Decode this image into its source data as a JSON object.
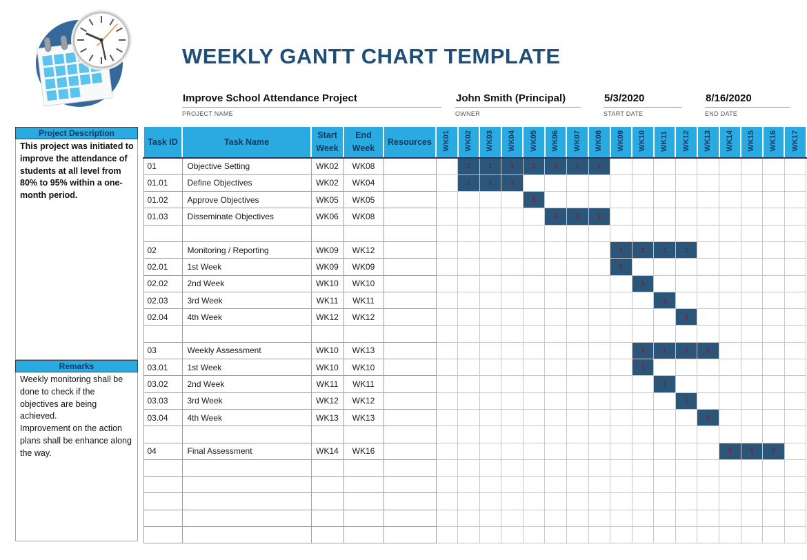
{
  "page": {
    "title": "WEEKLY GANTT CHART TEMPLATE"
  },
  "logo": {
    "description": "calendar-with-clock-logo"
  },
  "info": {
    "project_name": {
      "value": "Improve School Attendance Project",
      "label": "PROJECT NAME"
    },
    "owner": {
      "value": "John Smith (Principal)",
      "label": "OWNER"
    },
    "start_date": {
      "value": "5/3/2020",
      "label": "START DATE"
    },
    "end_date": {
      "value": "8/16/2020",
      "label": "END DATE"
    }
  },
  "sidebar": {
    "project_description": {
      "title": "Project Description",
      "body": "This project was initiated to improve the attendance of students at all level from 80% to 95% within a one-month period."
    },
    "remarks": {
      "title": "Remarks",
      "body": "Weekly monitoring shall be done to check if the objectives are being achieved.\nImprovement on the action plans shall be enhance along the way."
    }
  },
  "table": {
    "headers": {
      "task_id": "Task ID",
      "task_name": "Task Name",
      "start_week": "Start\nWeek",
      "end_week": "End\nWeek",
      "resources": "Resources"
    }
  },
  "chart_data": {
    "type": "table",
    "subtype": "gantt-weekly",
    "title": "WEEKLY GANTT CHART TEMPLATE",
    "bar_cell_value": "1",
    "week_columns": [
      "WK01",
      "WK02",
      "WK03",
      "WK04",
      "WK05",
      "WK06",
      "WK07",
      "WK08",
      "WK09",
      "WK10",
      "WK11",
      "WK12",
      "WK13",
      "WK14",
      "WK15",
      "WK16",
      "WK17"
    ],
    "rows": [
      {
        "task_id": "01",
        "task_name": "Objective Setting",
        "start_week": "WK02",
        "end_week": "WK08",
        "bar_start": 2,
        "bar_end": 8
      },
      {
        "task_id": "01.01",
        "task_name": "Define Objectives",
        "start_week": "WK02",
        "end_week": "WK04",
        "bar_start": 2,
        "bar_end": 4
      },
      {
        "task_id": "01.02",
        "task_name": "Approve Objectives",
        "start_week": "WK05",
        "end_week": "WK05",
        "bar_start": 5,
        "bar_end": 5
      },
      {
        "task_id": "01.03",
        "task_name": "Disseminate Objectives",
        "start_week": "WK06",
        "end_week": "WK08",
        "bar_start": 6,
        "bar_end": 8
      },
      {
        "task_id": "",
        "task_name": "",
        "start_week": "",
        "end_week": "",
        "bar_start": null,
        "bar_end": null
      },
      {
        "task_id": "02",
        "task_name": "Monitoring / Reporting",
        "start_week": "WK09",
        "end_week": "WK12",
        "bar_start": 9,
        "bar_end": 12
      },
      {
        "task_id": "02.01",
        "task_name": "1st Week",
        "start_week": "WK09",
        "end_week": "WK09",
        "bar_start": 9,
        "bar_end": 9
      },
      {
        "task_id": "02.02",
        "task_name": "2nd Week",
        "start_week": "WK10",
        "end_week": "WK10",
        "bar_start": 10,
        "bar_end": 10
      },
      {
        "task_id": "02.03",
        "task_name": "3rd Week",
        "start_week": "WK11",
        "end_week": "WK11",
        "bar_start": 11,
        "bar_end": 11
      },
      {
        "task_id": "02.04",
        "task_name": "4th Week",
        "start_week": "WK12",
        "end_week": "WK12",
        "bar_start": 12,
        "bar_end": 12
      },
      {
        "task_id": "",
        "task_name": "",
        "start_week": "",
        "end_week": "",
        "bar_start": null,
        "bar_end": null
      },
      {
        "task_id": "03",
        "task_name": "Weekly Assessment",
        "start_week": "WK10",
        "end_week": "WK13",
        "bar_start": 10,
        "bar_end": 13
      },
      {
        "task_id": "03.01",
        "task_name": "1st Week",
        "start_week": "WK10",
        "end_week": "WK10",
        "bar_start": 10,
        "bar_end": 10
      },
      {
        "task_id": "03.02",
        "task_name": "2nd Week",
        "start_week": "WK11",
        "end_week": "WK11",
        "bar_start": 11,
        "bar_end": 11
      },
      {
        "task_id": "03.03",
        "task_name": "3rd Week",
        "start_week": "WK12",
        "end_week": "WK12",
        "bar_start": 12,
        "bar_end": 12
      },
      {
        "task_id": "03.04",
        "task_name": "4th Week",
        "start_week": "WK13",
        "end_week": "WK13",
        "bar_start": 13,
        "bar_end": 13
      },
      {
        "task_id": "",
        "task_name": "",
        "start_week": "",
        "end_week": "",
        "bar_start": null,
        "bar_end": null
      },
      {
        "task_id": "04",
        "task_name": "Final Assessment",
        "start_week": "WK14",
        "end_week": "WK16",
        "bar_start": 14,
        "bar_end": 16
      },
      {
        "task_id": "",
        "task_name": "",
        "start_week": "",
        "end_week": "",
        "bar_start": null,
        "bar_end": null
      },
      {
        "task_id": "",
        "task_name": "",
        "start_week": "",
        "end_week": "",
        "bar_start": null,
        "bar_end": null
      },
      {
        "task_id": "",
        "task_name": "",
        "start_week": "",
        "end_week": "",
        "bar_start": null,
        "bar_end": null
      },
      {
        "task_id": "",
        "task_name": "",
        "start_week": "",
        "end_week": "",
        "bar_start": null,
        "bar_end": null
      },
      {
        "task_id": "",
        "task_name": "",
        "start_week": "",
        "end_week": "",
        "bar_start": null,
        "bar_end": null
      }
    ]
  },
  "colors": {
    "accent_cyan": "#29ABE2",
    "title_navy": "#1F4E79",
    "header_text_navy": "#17375E",
    "gantt_bar_fill": "#2B5579",
    "gantt_bar_value_text": "#7E1F3C",
    "logo_circle_blue": "#35689B",
    "logo_calendar_square_blue": "#5BC4EE"
  }
}
